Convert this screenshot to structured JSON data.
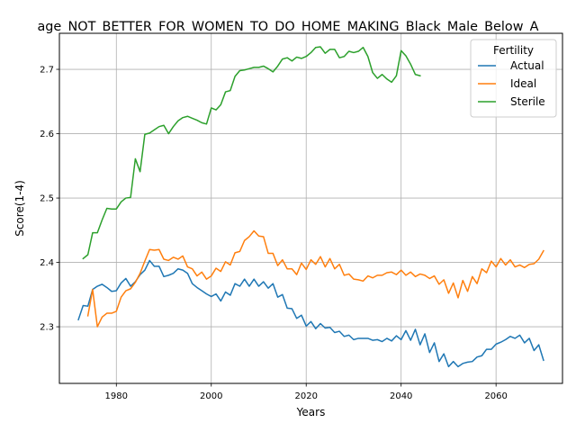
{
  "chart_data": {
    "type": "line",
    "title": "age_NOT_BETTER_FOR_WOMEN_TO_DO_HOME_MAKING_Black_Male_Below_A",
    "xlabel": "Years",
    "ylabel": "Score(1-4)",
    "xlim": [
      1968,
      2074
    ],
    "ylim": [
      2.212,
      2.756
    ],
    "xticks": [
      1980,
      2000,
      2020,
      2040,
      2060
    ],
    "yticks": [
      2.3,
      2.4,
      2.5,
      2.6,
      2.7
    ],
    "xtick_labels": [
      "1980",
      "2000",
      "2020",
      "2040",
      "2060"
    ],
    "ytick_labels": [
      "2.3",
      "2.4",
      "2.5",
      "2.6",
      "2.7"
    ],
    "grid": true,
    "legend": {
      "title": "Fertility",
      "position": "top-right"
    },
    "series": [
      {
        "name": "Actual",
        "color": "#1f77b4",
        "x": [
          1972,
          1973,
          1974,
          1975,
          1976,
          1977,
          1978,
          1979,
          1980,
          1981,
          1982,
          1983,
          1984,
          1985,
          1986,
          1987,
          1988,
          1989,
          1990,
          1991,
          1992,
          1993,
          1994,
          1995,
          1996,
          1997,
          1998,
          1999,
          2000,
          2001,
          2002,
          2003,
          2004,
          2005,
          2006,
          2007,
          2008,
          2009,
          2010,
          2011,
          2012,
          2013,
          2014,
          2015,
          2016,
          2017,
          2018,
          2019,
          2020,
          2021,
          2022,
          2023,
          2024,
          2025,
          2026,
          2027,
          2028,
          2029,
          2030,
          2031,
          2032,
          2033,
          2034,
          2035,
          2036,
          2037,
          2038,
          2039,
          2040,
          2041,
          2042,
          2043,
          2044,
          2045,
          2046,
          2047,
          2048,
          2049,
          2050,
          2051,
          2052,
          2053,
          2054,
          2055,
          2056,
          2057,
          2058,
          2059,
          2060,
          2061,
          2062,
          2063,
          2064,
          2065,
          2066,
          2067,
          2068,
          2069,
          2070
        ],
        "values": [
          2.311,
          2.333,
          2.332,
          2.358,
          2.363,
          2.366,
          2.361,
          2.355,
          2.356,
          2.368,
          2.375,
          2.363,
          2.37,
          2.381,
          2.388,
          2.403,
          2.394,
          2.394,
          2.378,
          2.38,
          2.383,
          2.39,
          2.388,
          2.383,
          2.367,
          2.361,
          2.356,
          2.351,
          2.347,
          2.351,
          2.34,
          2.354,
          2.349,
          2.367,
          2.363,
          2.374,
          2.363,
          2.374,
          2.363,
          2.37,
          2.36,
          2.367,
          2.346,
          2.35,
          2.329,
          2.328,
          2.313,
          2.318,
          2.301,
          2.308,
          2.297,
          2.305,
          2.298,
          2.299,
          2.291,
          2.293,
          2.285,
          2.287,
          2.28,
          2.282,
          2.282,
          2.282,
          2.279,
          2.28,
          2.277,
          2.282,
          2.278,
          2.286,
          2.28,
          2.294,
          2.279,
          2.296,
          2.272,
          2.289,
          2.26,
          2.275,
          2.246,
          2.258,
          2.238,
          2.246,
          2.238,
          2.243,
          2.245,
          2.246,
          2.253,
          2.255,
          2.265,
          2.265,
          2.273,
          2.276,
          2.28,
          2.285,
          2.282,
          2.287,
          2.275,
          2.282,
          2.263,
          2.272,
          2.248
        ]
      },
      {
        "name": "Ideal",
        "color": "#ff7f0e",
        "x": [
          1974,
          1975,
          1976,
          1977,
          1978,
          1979,
          1980,
          1981,
          1982,
          1983,
          1984,
          1985,
          1986,
          1987,
          1988,
          1989,
          1990,
          1991,
          1992,
          1993,
          1994,
          1995,
          1996,
          1997,
          1998,
          1999,
          2000,
          2001,
          2002,
          2003,
          2004,
          2005,
          2006,
          2007,
          2008,
          2009,
          2010,
          2011,
          2012,
          2013,
          2014,
          2015,
          2016,
          2017,
          2018,
          2019,
          2020,
          2021,
          2022,
          2023,
          2024,
          2025,
          2026,
          2027,
          2028,
          2029,
          2030,
          2031,
          2032,
          2033,
          2034,
          2035,
          2036,
          2037,
          2038,
          2039,
          2040,
          2041,
          2042,
          2043,
          2044,
          2045,
          2046,
          2047,
          2048,
          2049,
          2050,
          2051,
          2052,
          2053,
          2054,
          2055,
          2056,
          2057,
          2058,
          2059,
          2060,
          2061,
          2062,
          2063,
          2064,
          2065,
          2066,
          2067,
          2068,
          2069,
          2070
        ],
        "values": [
          2.317,
          2.358,
          2.3,
          2.315,
          2.321,
          2.321,
          2.324,
          2.346,
          2.356,
          2.359,
          2.369,
          2.383,
          2.402,
          2.42,
          2.419,
          2.42,
          2.405,
          2.403,
          2.408,
          2.405,
          2.41,
          2.393,
          2.39,
          2.379,
          2.385,
          2.374,
          2.379,
          2.391,
          2.386,
          2.401,
          2.396,
          2.415,
          2.417,
          2.434,
          2.44,
          2.449,
          2.441,
          2.44,
          2.414,
          2.414,
          2.395,
          2.404,
          2.39,
          2.39,
          2.381,
          2.399,
          2.389,
          2.404,
          2.397,
          2.409,
          2.393,
          2.406,
          2.39,
          2.397,
          2.38,
          2.382,
          2.374,
          2.373,
          2.371,
          2.379,
          2.376,
          2.38,
          2.38,
          2.384,
          2.385,
          2.381,
          2.388,
          2.38,
          2.385,
          2.378,
          2.382,
          2.38,
          2.375,
          2.379,
          2.366,
          2.373,
          2.352,
          2.368,
          2.345,
          2.372,
          2.355,
          2.378,
          2.367,
          2.39,
          2.384,
          2.402,
          2.393,
          2.406,
          2.396,
          2.404,
          2.393,
          2.396,
          2.392,
          2.397,
          2.398,
          2.405,
          2.418
        ]
      },
      {
        "name": "Sterile",
        "color": "#2ca02c",
        "x": [
          1973,
          1974,
          1975,
          1976,
          1977,
          1978,
          1979,
          1980,
          1981,
          1982,
          1983,
          1984,
          1985,
          1986,
          1987,
          1988,
          1989,
          1990,
          1991,
          1992,
          1993,
          1994,
          1995,
          1996,
          1997,
          1998,
          1999,
          2000,
          2001,
          2002,
          2003,
          2004,
          2005,
          2006,
          2007,
          2008,
          2009,
          2010,
          2011,
          2012,
          2013,
          2014,
          2015,
          2016,
          2017,
          2018,
          2019,
          2020,
          2021,
          2022,
          2023,
          2024,
          2025,
          2026,
          2027,
          2028,
          2029,
          2030,
          2031,
          2032,
          2033,
          2034,
          2035,
          2036,
          2037,
          2038,
          2039,
          2040,
          2041,
          2042,
          2043,
          2044
        ],
        "values": [
          2.406,
          2.412,
          2.446,
          2.446,
          2.466,
          2.484,
          2.483,
          2.483,
          2.494,
          2.5,
          2.501,
          2.561,
          2.541,
          2.599,
          2.601,
          2.606,
          2.611,
          2.613,
          2.6,
          2.611,
          2.62,
          2.625,
          2.627,
          2.624,
          2.621,
          2.617,
          2.615,
          2.64,
          2.637,
          2.645,
          2.665,
          2.667,
          2.689,
          2.698,
          2.699,
          2.701,
          2.703,
          2.703,
          2.705,
          2.701,
          2.696,
          2.705,
          2.716,
          2.718,
          2.713,
          2.719,
          2.717,
          2.72,
          2.726,
          2.734,
          2.735,
          2.725,
          2.731,
          2.731,
          2.718,
          2.72,
          2.728,
          2.726,
          2.728,
          2.734,
          2.72,
          2.695,
          2.686,
          2.692,
          2.685,
          2.68,
          2.69,
          2.729,
          2.721,
          2.708,
          2.692,
          2.69
        ]
      }
    ]
  }
}
